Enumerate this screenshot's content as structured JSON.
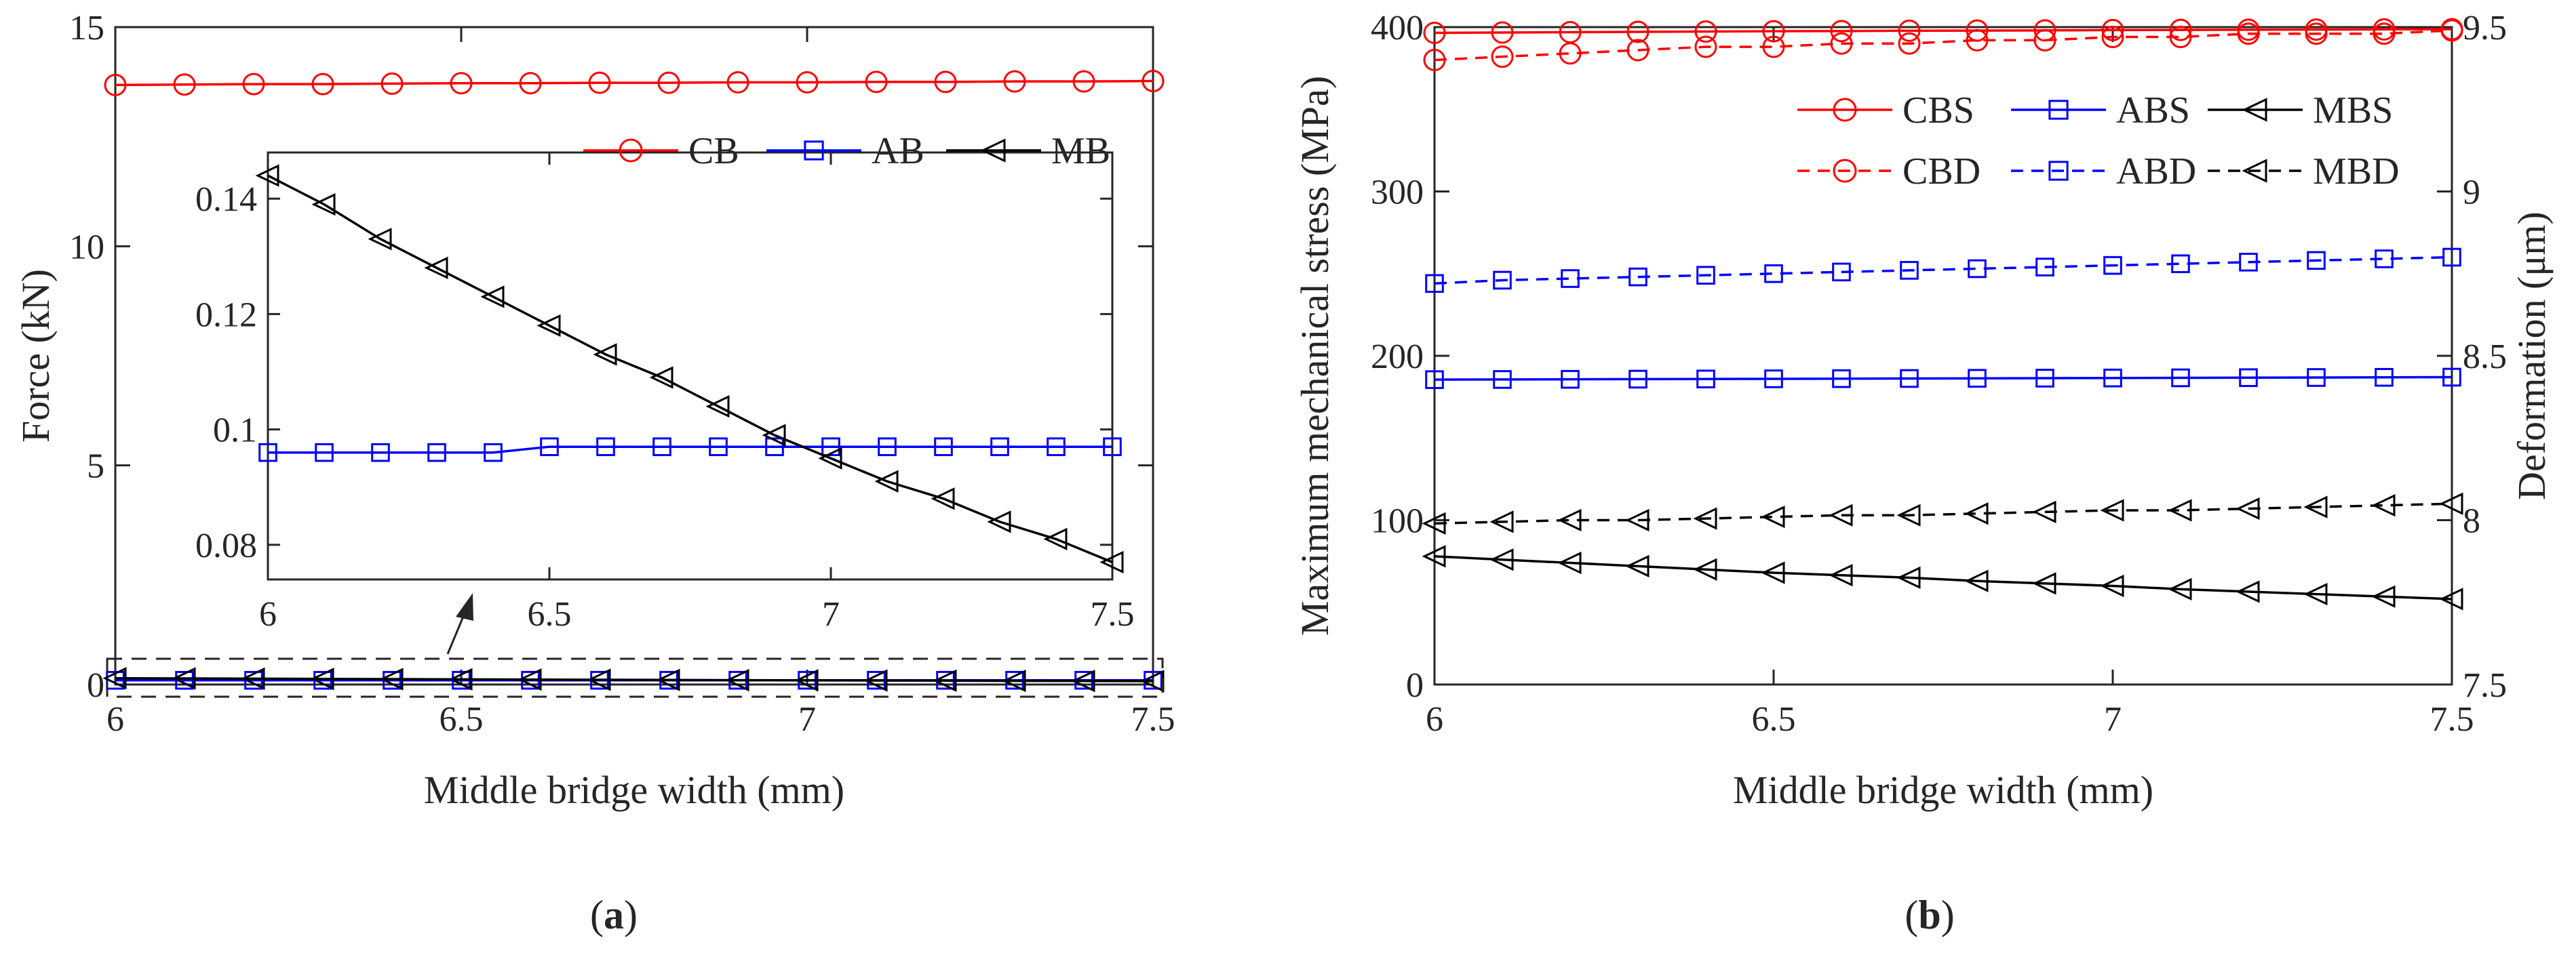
{
  "chart_data": [
    {
      "panel": "a",
      "type": "line",
      "caption_letter": "a",
      "caption": "(a)",
      "xlabel": "Middle bridge width (mm)",
      "ylabel": "Force (kN)",
      "xlim": [
        6,
        7.5
      ],
      "ylim": [
        0,
        15
      ],
      "xticks": [
        "6",
        "6.5",
        "7",
        "7.5"
      ],
      "yticks": [
        "0",
        "5",
        "10",
        "15"
      ],
      "x": [
        6.0,
        6.1,
        6.2,
        6.3,
        6.4,
        6.5,
        6.6,
        6.7,
        6.8,
        6.9,
        7.0,
        7.1,
        7.2,
        7.3,
        7.4,
        7.5
      ],
      "legend_position": "top-right",
      "series": [
        {
          "name": "CB",
          "color": "#ff0000",
          "marker": "circle",
          "style": "solid",
          "values": [
            13.68,
            13.69,
            13.7,
            13.7,
            13.71,
            13.72,
            13.72,
            13.73,
            13.73,
            13.74,
            13.74,
            13.75,
            13.75,
            13.76,
            13.76,
            13.77
          ]
        },
        {
          "name": "AB",
          "color": "#0000ff",
          "marker": "square",
          "style": "solid",
          "values": [
            0.096,
            0.096,
            0.096,
            0.096,
            0.096,
            0.097,
            0.097,
            0.097,
            0.097,
            0.097,
            0.097,
            0.097,
            0.097,
            0.097,
            0.097,
            0.097
          ]
        },
        {
          "name": "MB",
          "color": "#000000",
          "marker": "triangle-left",
          "style": "solid",
          "values": [
            0.144,
            0.139,
            0.133,
            0.128,
            0.123,
            0.118,
            0.113,
            0.109,
            0.104,
            0.099,
            0.095,
            0.091,
            0.088,
            0.084,
            0.081,
            0.077
          ]
        }
      ],
      "inset": {
        "xlim": [
          6,
          7.5
        ],
        "ylim": [
          0.074,
          0.148
        ],
        "xticks": [
          "6",
          "6.5",
          "7",
          "7.5"
        ],
        "yticks": [
          "0.08",
          "0.1",
          "0.12",
          "0.14"
        ],
        "series_shown": [
          "AB",
          "MB"
        ],
        "note": "zoomed view of the dashed region near 0 kN"
      }
    },
    {
      "panel": "b",
      "type": "line",
      "caption_letter": "b",
      "caption": "(b)",
      "xlabel": "Middle bridge width (mm)",
      "ylabel": "Maximum mechanical stress (MPa)",
      "ylabel_right": "Deformation (μm)",
      "xlim": [
        6,
        7.5
      ],
      "ylim": [
        0,
        400
      ],
      "ylim_right": [
        7.5,
        9.5
      ],
      "xticks": [
        "6",
        "6.5",
        "7",
        "7.5"
      ],
      "yticks": [
        "0",
        "100",
        "200",
        "300",
        "400"
      ],
      "yticks_right": [
        "7.5",
        "8",
        "8.5",
        "9",
        "9.5"
      ],
      "x": [
        6.0,
        6.1,
        6.2,
        6.3,
        6.4,
        6.5,
        6.6,
        6.7,
        6.8,
        6.9,
        7.0,
        7.1,
        7.2,
        7.3,
        7.4,
        7.5
      ],
      "legend_position": "top-right",
      "series": [
        {
          "name": "CBS",
          "axis": "left",
          "color": "#ff0000",
          "marker": "circle",
          "style": "solid",
          "values": [
            396.5,
            396.7,
            396.9,
            397.1,
            397.3,
            397.5,
            397.6,
            397.8,
            397.9,
            398.0,
            398.2,
            398.3,
            398.4,
            398.5,
            398.6,
            398.7
          ]
        },
        {
          "name": "ABS",
          "axis": "left",
          "color": "#0000ff",
          "marker": "square",
          "style": "solid",
          "values": [
            185.5,
            185.6,
            185.7,
            185.8,
            185.9,
            186.0,
            186.1,
            186.2,
            186.3,
            186.4,
            186.5,
            186.6,
            186.7,
            186.8,
            186.9,
            187.0
          ]
        },
        {
          "name": "MBS",
          "axis": "left",
          "color": "#000000",
          "marker": "triangle-left",
          "style": "solid",
          "values": [
            78,
            76,
            74,
            72,
            70,
            68,
            66.5,
            65,
            63,
            61.5,
            60,
            58,
            56.5,
            55,
            53.5,
            52
          ]
        },
        {
          "name": "CBD",
          "axis": "right",
          "color": "#ff0000",
          "marker": "circle",
          "style": "dashed",
          "values": [
            9.4,
            9.41,
            9.42,
            9.43,
            9.44,
            9.44,
            9.45,
            9.45,
            9.46,
            9.46,
            9.47,
            9.47,
            9.48,
            9.48,
            9.48,
            9.49
          ]
        },
        {
          "name": "ABD",
          "axis": "right",
          "color": "#0000ff",
          "marker": "square",
          "style": "dashed",
          "values": [
            8.72,
            8.73,
            8.735,
            8.74,
            8.745,
            8.75,
            8.755,
            8.76,
            8.765,
            8.77,
            8.775,
            8.78,
            8.785,
            8.79,
            8.795,
            8.8
          ]
        },
        {
          "name": "MBD",
          "axis": "right",
          "color": "#000000",
          "marker": "triangle-left",
          "style": "dashed",
          "values": [
            7.99,
            7.995,
            8.0,
            8.0,
            8.005,
            8.01,
            8.015,
            8.015,
            8.02,
            8.025,
            8.03,
            8.03,
            8.035,
            8.04,
            8.045,
            8.05
          ]
        }
      ]
    }
  ]
}
